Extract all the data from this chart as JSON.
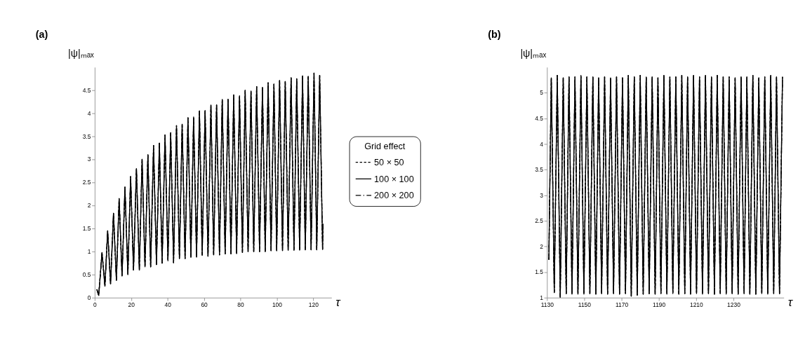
{
  "chart_data": [
    {
      "type": "line",
      "title": "(a)",
      "xlabel": "τ",
      "ylabel": "|ψ|ₘₐₓ",
      "legend_title": "Grid effect",
      "legend": "right",
      "grid": false,
      "xlim": [
        0,
        130
      ],
      "ylim": [
        0,
        5
      ],
      "xticks": [
        0,
        20,
        40,
        60,
        80,
        100,
        120
      ],
      "yticks": [
        0,
        0.5,
        1,
        1.5,
        2,
        2.5,
        3,
        3.5,
        4,
        4.5
      ],
      "x": [
        1.2,
        1.6,
        2.2,
        4.0,
        5.6,
        7.1,
        8.7,
        10.3,
        11.9,
        13.4,
        15.0,
        16.6,
        18.2,
        19.7,
        21.3,
        22.9,
        24.5,
        26.0,
        27.6,
        29.2,
        30.7,
        32.3,
        33.9,
        35.5,
        37.0,
        38.6,
        40.2,
        41.7,
        43.3,
        44.9,
        46.5,
        48.0,
        49.6,
        51.2,
        52.8,
        54.3,
        55.9,
        57.5,
        59.0,
        60.6,
        62.2,
        63.8,
        65.3,
        66.9,
        68.5,
        70.0,
        71.6,
        73.2,
        74.8,
        76.3,
        77.9,
        79.5,
        81.1,
        82.6,
        84.2,
        85.8,
        87.3,
        88.9,
        90.5,
        92.1,
        93.6,
        95.2,
        96.8,
        98.4,
        99.9,
        101.5,
        103.1,
        104.6,
        106.2,
        107.8,
        109.4,
        110.9,
        112.5,
        114.1,
        115.6,
        117.2,
        118.8,
        120.4,
        121.9,
        123.5,
        125.1,
        125.3
      ],
      "series": [
        {
          "name": "50 × 50",
          "color": "#000000",
          "line_style": "dashed",
          "values": [
            0.18,
            0.12,
            0.05,
            0.98,
            0.25,
            1.45,
            0.3,
            1.83,
            0.38,
            2.15,
            0.47,
            2.4,
            0.5,
            2.63,
            0.6,
            2.8,
            0.6,
            3.0,
            0.67,
            3.1,
            0.67,
            3.3,
            0.72,
            3.35,
            0.75,
            3.53,
            0.8,
            3.58,
            0.76,
            3.73,
            0.85,
            3.76,
            0.85,
            3.9,
            0.88,
            3.92,
            0.88,
            4.05,
            0.92,
            4.06,
            0.9,
            4.18,
            0.93,
            4.18,
            0.93,
            4.3,
            0.95,
            4.3,
            0.95,
            4.4,
            0.96,
            4.38,
            0.98,
            4.5,
            1.0,
            4.48,
            1.0,
            4.58,
            1.0,
            4.56,
            1.0,
            4.66,
            1.02,
            4.63,
            1.02,
            4.71,
            1.02,
            4.69,
            1.03,
            4.77,
            1.03,
            4.75,
            1.03,
            4.81,
            1.04,
            4.8,
            1.04,
            4.87,
            1.04,
            4.82,
            1.05,
            1.6
          ]
        },
        {
          "name": "100 × 100",
          "color": "#000000",
          "line_style": "solid",
          "values": [
            0.18,
            0.12,
            0.05,
            0.98,
            0.25,
            1.45,
            0.3,
            1.83,
            0.38,
            2.15,
            0.47,
            2.4,
            0.5,
            2.63,
            0.6,
            2.8,
            0.6,
            3.0,
            0.67,
            3.1,
            0.67,
            3.3,
            0.72,
            3.35,
            0.75,
            3.53,
            0.8,
            3.58,
            0.76,
            3.73,
            0.85,
            3.76,
            0.85,
            3.9,
            0.88,
            3.92,
            0.88,
            4.05,
            0.92,
            4.06,
            0.9,
            4.18,
            0.93,
            4.18,
            0.93,
            4.3,
            0.95,
            4.3,
            0.95,
            4.4,
            0.96,
            4.38,
            0.98,
            4.5,
            1.0,
            4.48,
            1.0,
            4.58,
            1.0,
            4.56,
            1.0,
            4.66,
            1.02,
            4.63,
            1.02,
            4.71,
            1.02,
            4.69,
            1.03,
            4.77,
            1.03,
            4.75,
            1.03,
            4.81,
            1.04,
            4.8,
            1.04,
            4.87,
            1.04,
            4.82,
            1.05,
            1.6
          ]
        },
        {
          "name": "200 × 200",
          "color": "#000000",
          "line_style": "dashdot",
          "values": [
            0.18,
            0.12,
            0.05,
            0.98,
            0.25,
            1.45,
            0.3,
            1.83,
            0.38,
            2.15,
            0.47,
            2.4,
            0.5,
            2.63,
            0.6,
            2.8,
            0.6,
            3.0,
            0.67,
            3.1,
            0.67,
            3.3,
            0.72,
            3.35,
            0.75,
            3.53,
            0.8,
            3.58,
            0.76,
            3.73,
            0.85,
            3.76,
            0.85,
            3.9,
            0.88,
            3.92,
            0.88,
            4.05,
            0.92,
            4.06,
            0.9,
            4.18,
            0.93,
            4.18,
            0.93,
            4.3,
            0.95,
            4.3,
            0.95,
            4.4,
            0.96,
            4.38,
            0.98,
            4.5,
            1.0,
            4.48,
            1.0,
            4.58,
            1.0,
            4.56,
            1.0,
            4.66,
            1.02,
            4.63,
            1.02,
            4.71,
            1.02,
            4.69,
            1.03,
            4.77,
            1.03,
            4.75,
            1.03,
            4.81,
            1.04,
            4.8,
            1.04,
            4.87,
            1.04,
            4.82,
            1.05,
            1.6
          ]
        }
      ]
    },
    {
      "type": "line",
      "title": "(b)",
      "xlabel": "τ",
      "ylabel": "|ψ|ₘₐₓ",
      "grid": false,
      "xlim": [
        1130,
        1257
      ],
      "ylim": [
        1,
        5.5
      ],
      "xticks": [
        1130,
        1150,
        1170,
        1190,
        1210,
        1230
      ],
      "yticks": [
        1,
        1.5,
        2,
        2.5,
        3,
        3.5,
        4,
        4.5,
        5
      ],
      "x": [
        1131.0,
        1132.3,
        1133.9,
        1135.5,
        1137.1,
        1138.7,
        1140.3,
        1141.8,
        1143.4,
        1145.0,
        1146.6,
        1148.2,
        1149.8,
        1151.4,
        1153.0,
        1154.6,
        1156.2,
        1157.7,
        1159.3,
        1160.9,
        1162.5,
        1164.1,
        1165.7,
        1167.3,
        1168.9,
        1170.5,
        1172.1,
        1173.6,
        1175.2,
        1176.8,
        1178.4,
        1180.0,
        1181.6,
        1183.2,
        1184.8,
        1186.4,
        1188.0,
        1189.5,
        1191.1,
        1192.7,
        1194.3,
        1195.9,
        1197.5,
        1199.1,
        1200.7,
        1202.3,
        1203.9,
        1205.4,
        1207.0,
        1208.6,
        1210.2,
        1211.8,
        1213.4,
        1215.0,
        1216.6,
        1218.2,
        1219.8,
        1221.3,
        1222.9,
        1224.5,
        1226.1,
        1227.7,
        1229.3,
        1230.9,
        1232.5,
        1234.1,
        1235.7,
        1237.2,
        1238.8,
        1240.4,
        1242.0,
        1243.6,
        1245.2,
        1246.8,
        1248.4,
        1250.0,
        1251.6,
        1253.1,
        1254.7,
        1256.3
      ],
      "series": [
        {
          "name": "50 × 50",
          "color": "#000000",
          "line_style": "dashed",
          "values": [
            1.74,
            5.29,
            1.1,
            5.34,
            1.01,
            5.29,
            1.08,
            5.31,
            1.07,
            5.31,
            1.07,
            5.34,
            1.07,
            5.31,
            1.08,
            5.31,
            1.07,
            5.29,
            1.08,
            5.31,
            1.07,
            5.29,
            1.08,
            5.31,
            1.07,
            5.29,
            1.08,
            5.34,
            1.03,
            5.31,
            1.05,
            5.34,
            1.07,
            5.31,
            1.08,
            5.31,
            1.07,
            5.29,
            1.08,
            5.34,
            1.07,
            5.31,
            1.08,
            5.31,
            1.07,
            5.34,
            1.08,
            5.31,
            1.07,
            5.34,
            1.08,
            5.31,
            1.07,
            5.34,
            1.08,
            5.31,
            1.07,
            5.34,
            1.08,
            5.31,
            1.07,
            5.31,
            1.08,
            5.29,
            1.07,
            5.31,
            1.08,
            5.31,
            1.07,
            5.34,
            1.07,
            5.29,
            1.08,
            5.31,
            1.07,
            5.34,
            1.08,
            5.31,
            1.08,
            5.31
          ]
        },
        {
          "name": "100 × 100",
          "color": "#000000",
          "line_style": "solid",
          "values": [
            1.74,
            5.29,
            1.1,
            5.34,
            1.01,
            5.29,
            1.08,
            5.31,
            1.07,
            5.31,
            1.07,
            5.34,
            1.07,
            5.31,
            1.08,
            5.31,
            1.07,
            5.29,
            1.08,
            5.31,
            1.07,
            5.29,
            1.08,
            5.31,
            1.07,
            5.29,
            1.08,
            5.34,
            1.03,
            5.31,
            1.05,
            5.34,
            1.07,
            5.31,
            1.08,
            5.31,
            1.07,
            5.29,
            1.08,
            5.34,
            1.07,
            5.31,
            1.08,
            5.31,
            1.07,
            5.34,
            1.08,
            5.31,
            1.07,
            5.34,
            1.08,
            5.31,
            1.07,
            5.34,
            1.08,
            5.31,
            1.07,
            5.34,
            1.08,
            5.31,
            1.07,
            5.31,
            1.08,
            5.29,
            1.07,
            5.31,
            1.08,
            5.31,
            1.07,
            5.34,
            1.07,
            5.29,
            1.08,
            5.31,
            1.07,
            5.34,
            1.08,
            5.31,
            1.08,
            5.31
          ]
        },
        {
          "name": "200 × 200",
          "color": "#000000",
          "line_style": "dashdot",
          "values": [
            1.74,
            5.29,
            1.1,
            5.34,
            1.01,
            5.29,
            1.08,
            5.31,
            1.07,
            5.31,
            1.07,
            5.34,
            1.07,
            5.31,
            1.08,
            5.31,
            1.07,
            5.29,
            1.08,
            5.31,
            1.07,
            5.29,
            1.08,
            5.31,
            1.07,
            5.29,
            1.08,
            5.34,
            1.03,
            5.31,
            1.05,
            5.34,
            1.07,
            5.31,
            1.08,
            5.31,
            1.07,
            5.29,
            1.08,
            5.34,
            1.07,
            5.31,
            1.08,
            5.31,
            1.07,
            5.34,
            1.08,
            5.31,
            1.07,
            5.34,
            1.08,
            5.31,
            1.07,
            5.34,
            1.08,
            5.31,
            1.07,
            5.34,
            1.08,
            5.31,
            1.07,
            5.31,
            1.08,
            5.29,
            1.07,
            5.31,
            1.08,
            5.31,
            1.07,
            5.34,
            1.07,
            5.29,
            1.08,
            5.31,
            1.07,
            5.34,
            1.08,
            5.31,
            1.08,
            5.31
          ]
        }
      ]
    }
  ]
}
